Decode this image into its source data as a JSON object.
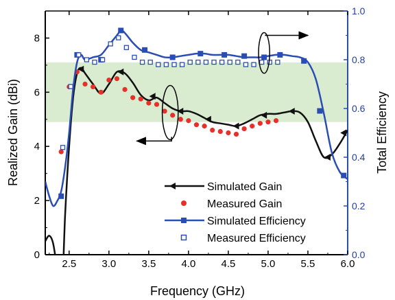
{
  "chart_data": {
    "type": "line",
    "xlabel": "Frequency (GHz)",
    "ylabel": "Realized Gain (dBi)",
    "y2label": "Total Efficiency",
    "xlim": [
      2.2,
      6.0
    ],
    "ylim": [
      0,
      9
    ],
    "y2lim": [
      0.0,
      1.0
    ],
    "xticks": [
      "2.5",
      "3.0",
      "3.5",
      "4.0",
      "4.5",
      "5.0",
      "5.5",
      "6.0"
    ],
    "yticks": [
      "0",
      "2",
      "4",
      "6",
      "8"
    ],
    "y2ticks": [
      "0.0",
      "0.2",
      "0.4",
      "0.6",
      "0.8",
      "1.0"
    ],
    "shaded_band": {
      "y_from": 4.9,
      "y_to": 7.1,
      "color": "#d9ecd0"
    },
    "legend_position": "bottom-center",
    "colors": {
      "gain": "#111111",
      "measured_gain": "#e8302a",
      "efficiency": "#2a4db3"
    },
    "series": [
      {
        "name": "Simulated Gain",
        "axis": "left",
        "style": "line-triangle",
        "x": [
          2.2,
          2.25,
          2.3,
          2.35,
          2.4,
          2.45,
          2.5,
          2.55,
          2.6,
          2.65,
          2.7,
          2.8,
          2.9,
          3.0,
          3.1,
          3.2,
          3.3,
          3.4,
          3.5,
          3.6,
          3.7,
          3.8,
          3.9,
          4.0,
          4.1,
          4.2,
          4.3,
          4.4,
          4.5,
          4.6,
          4.7,
          4.8,
          4.9,
          5.0,
          5.1,
          5.2,
          5.3,
          5.4,
          5.5,
          5.6,
          5.7,
          5.8,
          5.9,
          6.0
        ],
        "values": [
          0.5,
          0.7,
          0.4,
          -0.6,
          -2.0,
          1.5,
          4.0,
          5.8,
          6.7,
          6.9,
          6.7,
          6.3,
          5.95,
          6.3,
          6.75,
          6.7,
          6.35,
          5.9,
          5.7,
          5.8,
          5.6,
          5.4,
          5.3,
          5.3,
          5.2,
          5.05,
          4.9,
          4.85,
          4.8,
          4.75,
          4.85,
          5.0,
          5.15,
          5.2,
          5.2,
          5.25,
          5.3,
          5.25,
          4.9,
          4.2,
          3.6,
          3.7,
          4.1,
          4.6
        ],
        "markers_x": [
          2.65,
          3.15,
          3.55,
          3.9,
          4.25,
          4.6,
          4.95,
          5.3,
          5.75,
          5.95
        ],
        "markers_y": [
          6.85,
          6.75,
          5.85,
          5.3,
          5.0,
          4.75,
          5.15,
          5.3,
          3.6,
          4.5
        ]
      },
      {
        "name": "Measured Gain",
        "axis": "left",
        "style": "dots",
        "x": [
          2.4,
          2.5,
          2.6,
          2.7,
          2.8,
          2.9,
          3.0,
          3.1,
          3.2,
          3.3,
          3.4,
          3.5,
          3.6,
          3.7,
          3.8,
          3.9,
          4.0,
          4.1,
          4.2,
          4.3,
          4.4,
          4.5,
          4.6,
          4.7,
          4.8,
          4.9,
          5.0,
          5.1
        ],
        "values": [
          3.8,
          6.2,
          6.75,
          6.3,
          6.2,
          6.0,
          6.45,
          6.5,
          6.1,
          5.8,
          5.75,
          5.6,
          5.55,
          5.3,
          5.15,
          5.0,
          4.95,
          4.8,
          4.75,
          4.6,
          4.55,
          4.5,
          4.45,
          4.65,
          4.75,
          4.85,
          4.9,
          4.95
        ]
      },
      {
        "name": "Simulated Efficiency",
        "axis": "right",
        "style": "line-square",
        "x": [
          2.2,
          2.25,
          2.3,
          2.35,
          2.4,
          2.45,
          2.5,
          2.55,
          2.6,
          2.65,
          2.7,
          2.8,
          2.9,
          3.0,
          3.1,
          3.15,
          3.2,
          3.3,
          3.4,
          3.5,
          3.6,
          3.7,
          3.8,
          3.9,
          4.0,
          4.1,
          4.2,
          4.3,
          4.4,
          4.5,
          4.6,
          4.7,
          4.8,
          4.9,
          5.0,
          5.1,
          5.2,
          5.3,
          5.4,
          5.5,
          5.6,
          5.7,
          5.8,
          5.9,
          6.0
        ],
        "values": [
          0.3,
          0.24,
          0.2,
          0.22,
          0.26,
          0.36,
          0.5,
          0.68,
          0.79,
          0.82,
          0.8,
          0.81,
          0.82,
          0.86,
          0.9,
          0.92,
          0.91,
          0.87,
          0.84,
          0.83,
          0.82,
          0.81,
          0.81,
          0.815,
          0.82,
          0.825,
          0.825,
          0.82,
          0.82,
          0.82,
          0.815,
          0.81,
          0.81,
          0.81,
          0.815,
          0.82,
          0.82,
          0.815,
          0.81,
          0.79,
          0.72,
          0.58,
          0.42,
          0.34,
          0.31
        ],
        "markers_x": [
          2.4,
          2.6,
          2.9,
          3.15,
          3.45,
          3.8,
          4.15,
          4.45,
          4.7,
          4.95,
          5.15,
          5.45,
          5.65,
          5.95
        ],
        "markers_y": [
          0.24,
          0.82,
          0.8,
          0.92,
          0.84,
          0.81,
          0.825,
          0.82,
          0.815,
          0.81,
          0.82,
          0.795,
          0.59,
          0.325
        ]
      },
      {
        "name": "Measured Efficiency",
        "axis": "right",
        "style": "open-squares",
        "x": [
          2.42,
          2.52,
          2.62,
          2.72,
          2.82,
          2.92,
          3.02,
          3.12,
          3.22,
          3.32,
          3.42,
          3.52,
          3.62,
          3.72,
          3.82,
          3.92,
          4.02,
          4.12,
          4.22,
          4.32,
          4.42,
          4.52,
          4.62,
          4.72,
          4.82,
          4.92,
          5.02,
          5.12
        ],
        "values": [
          0.44,
          0.69,
          0.82,
          0.8,
          0.79,
          0.8,
          0.865,
          0.89,
          0.85,
          0.81,
          0.79,
          0.79,
          0.78,
          0.78,
          0.78,
          0.78,
          0.79,
          0.79,
          0.79,
          0.79,
          0.79,
          0.79,
          0.79,
          0.78,
          0.78,
          0.79,
          0.79,
          0.79
        ]
      }
    ],
    "annotations": [
      {
        "shape": "ellipse",
        "cx": 3.77,
        "cy": 5.25,
        "rx": 0.1,
        "ry": 1.0,
        "arrow_to": {
          "x": 3.35,
          "y": 4.2
        }
      },
      {
        "shape": "ellipse",
        "cx": 4.95,
        "cy": 7.45,
        "rx": 0.07,
        "ry": 0.75,
        "arrow_to": {
          "x": 5.5,
          "y": 8.1
        }
      }
    ]
  }
}
